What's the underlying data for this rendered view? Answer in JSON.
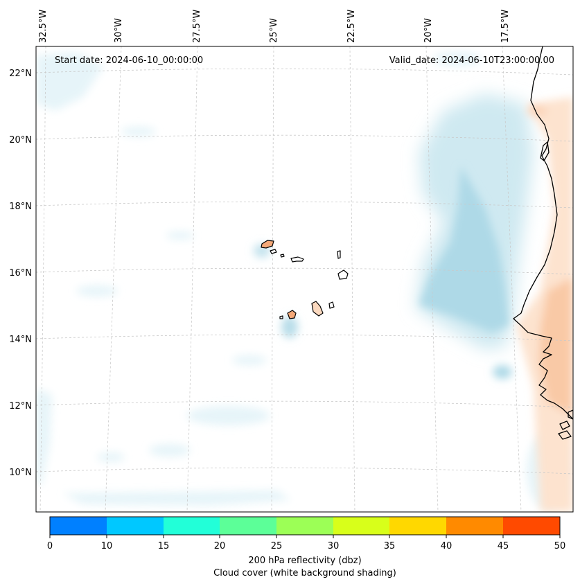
{
  "map": {
    "start_date_text": "Start date: 2024-06-10_00:00:00",
    "valid_date_text": "Valid_date: 2024-06-10T23:00:00.00",
    "longitude_labels": [
      "32.5°W",
      "30°W",
      "27.5°W",
      "25°W",
      "22.5°W",
      "20°W",
      "17.5°W"
    ],
    "latitude_labels": [
      "22°N",
      "20°N",
      "18°N",
      "16°N",
      "14°N",
      "12°N",
      "10°N"
    ],
    "region": "Cabo Verde / West Africa coast",
    "colors": {
      "cloud": "#a9d9e8",
      "cloud_light": "#e2f3f8",
      "land_warm": "#f6b487",
      "land_warm_light": "#fde3cf",
      "coastline": "#000000"
    }
  },
  "colorbar": {
    "title": "200 hPa reflectivity (dbz)",
    "subtitle": "Cloud cover (white background shading)",
    "ticks": [
      "0",
      "10",
      "15",
      "20",
      "25",
      "30",
      "35",
      "40",
      "45",
      "50"
    ],
    "colors": [
      "#0080ff",
      "#00c8ff",
      "#22ffd8",
      "#5cff98",
      "#9cff56",
      "#d8ff1a",
      "#ffd800",
      "#ff8a00",
      "#ff4a00"
    ]
  }
}
